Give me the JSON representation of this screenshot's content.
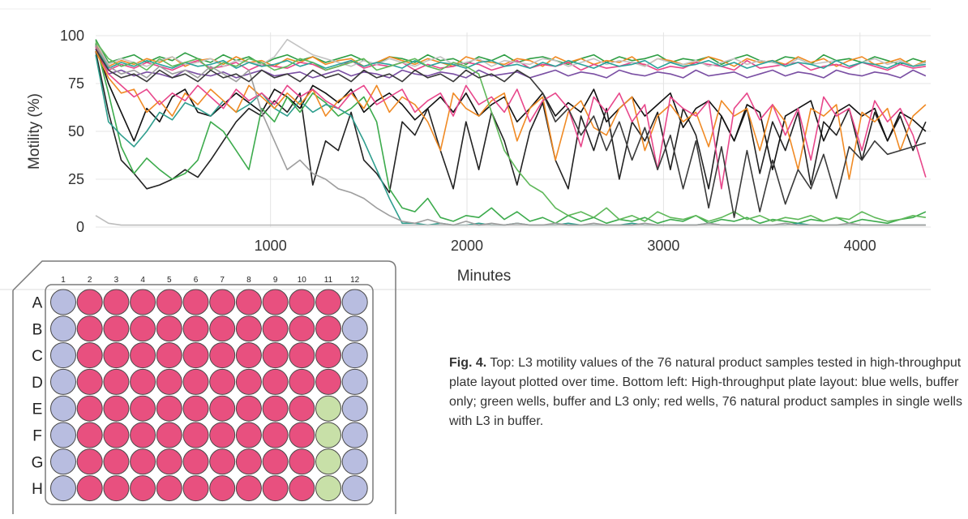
{
  "chart_data": {
    "type": "line",
    "title": "",
    "xlabel": "Minutes",
    "ylabel": "Motility (%)",
    "xlim": [
      110,
      4360
    ],
    "ylim": [
      0,
      100
    ],
    "x_ticks": [
      1000,
      2000,
      3000,
      4000
    ],
    "y_ticks": [
      0,
      25,
      50,
      75,
      100
    ],
    "grid": true,
    "legend": "none",
    "x": [
      110,
      175,
      240,
      305,
      370,
      435,
      500,
      565,
      630,
      695,
      760,
      825,
      890,
      955,
      1020,
      1085,
      1150,
      1215,
      1280,
      1345,
      1410,
      1475,
      1540,
      1605,
      1670,
      1735,
      1800,
      1865,
      1930,
      1995,
      2060,
      2125,
      2190,
      2255,
      2320,
      2385,
      2450,
      2515,
      2580,
      2645,
      2710,
      2775,
      2840,
      2905,
      2970,
      3035,
      3100,
      3165,
      3230,
      3295,
      3360,
      3425,
      3490,
      3555,
      3620,
      3685,
      3750,
      3815,
      3880,
      3945,
      4010,
      4075,
      4140,
      4205,
      4270,
      4335
    ],
    "series": [
      {
        "color": "#2e9e44",
        "values": [
          98,
          86,
          88,
          90,
          86,
          89,
          87,
          91,
          88,
          86,
          90,
          87,
          89,
          85,
          88,
          90,
          87,
          89,
          86,
          88,
          90,
          87,
          85,
          89,
          88,
          86,
          90,
          87,
          88,
          85,
          89,
          87,
          90,
          86,
          88,
          89,
          87,
          85,
          88,
          90,
          86,
          89,
          87,
          88,
          90,
          86,
          88,
          87,
          89,
          85,
          88,
          90,
          87,
          86,
          89,
          88,
          85,
          90,
          87,
          88,
          86,
          89,
          87,
          85,
          88,
          86
        ]
      },
      {
        "color": "#f08a24",
        "values": [
          96,
          84,
          87,
          85,
          88,
          86,
          89,
          84,
          87,
          88,
          85,
          89,
          86,
          87,
          84,
          88,
          86,
          89,
          85,
          87,
          88,
          84,
          86,
          89,
          87,
          85,
          88,
          86,
          84,
          89,
          87,
          86,
          85,
          88,
          87,
          84,
          89,
          86,
          88,
          85,
          87,
          86,
          89,
          84,
          88,
          87,
          85,
          86,
          89,
          87,
          84,
          88,
          86,
          87,
          85,
          89,
          86,
          88,
          84,
          87,
          89,
          85,
          86,
          88,
          84,
          87
        ]
      },
      {
        "color": "#e8478b",
        "values": [
          95,
          82,
          85,
          83,
          86,
          84,
          82,
          85,
          87,
          83,
          84,
          86,
          82,
          85,
          84,
          83,
          86,
          85,
          82,
          84,
          87,
          83,
          85,
          84,
          86,
          82,
          85,
          83,
          84,
          86,
          85,
          82,
          84,
          87,
          83,
          85,
          84,
          86,
          82,
          85,
          83,
          84,
          86,
          85,
          82,
          84,
          83,
          86,
          85,
          84,
          82,
          87,
          83,
          84,
          85,
          86,
          82,
          84,
          85,
          83,
          86,
          84,
          82,
          85,
          83,
          84
        ]
      },
      {
        "color": "#7a4fa3",
        "values": [
          93,
          80,
          82,
          79,
          81,
          80,
          78,
          82,
          80,
          79,
          81,
          78,
          80,
          82,
          79,
          80,
          81,
          78,
          80,
          82,
          79,
          81,
          80,
          78,
          82,
          80,
          79,
          81,
          80,
          78,
          82,
          79,
          80,
          81,
          78,
          80,
          82,
          79,
          81,
          80,
          78,
          82,
          80,
          79,
          81,
          80,
          78,
          82,
          79,
          80,
          81,
          78,
          80,
          82,
          79,
          81,
          80,
          78,
          82,
          80,
          79,
          81,
          80,
          78,
          82,
          79
        ]
      },
      {
        "color": "#c3c3c3",
        "values": [
          97,
          85,
          88,
          86,
          84,
          87,
          89,
          85,
          86,
          88,
          84,
          87,
          86,
          85,
          89,
          98,
          94,
          90,
          88,
          86,
          84,
          87,
          85,
          88,
          86,
          84,
          87,
          89,
          85,
          86,
          88,
          84,
          87,
          86,
          85,
          88,
          87,
          84,
          86,
          88,
          85,
          87,
          86,
          84,
          88,
          86,
          85,
          87,
          84,
          86,
          88,
          85,
          87,
          86,
          84,
          88,
          85,
          86,
          87,
          84,
          86,
          88,
          85,
          87,
          84,
          86
        ]
      },
      {
        "color": "#2aa39a",
        "values": [
          94,
          83,
          86,
          84,
          87,
          85,
          83,
          86,
          84,
          85,
          87,
          83,
          86,
          84,
          85,
          87,
          84,
          86,
          83,
          85,
          87,
          84,
          86,
          85,
          83,
          87,
          84,
          86,
          85,
          83,
          86,
          87,
          84,
          85,
          83,
          86,
          84,
          87,
          85,
          83,
          86,
          84,
          85,
          87,
          83,
          86,
          84,
          85,
          87,
          84,
          86,
          83,
          85,
          87,
          84,
          86,
          85,
          83,
          87,
          84,
          86,
          85,
          83,
          86,
          84,
          85
        ]
      },
      {
        "color": "#222222",
        "values": [
          92,
          60,
          35,
          28,
          20,
          22,
          25,
          30,
          26,
          35,
          45,
          55,
          62,
          58,
          66,
          60,
          70,
          22,
          45,
          40,
          60,
          35,
          28,
          18,
          55,
          48,
          62,
          40,
          20,
          55,
          30,
          60,
          45,
          22,
          50,
          65,
          35,
          20,
          58,
          40,
          62,
          25,
          55,
          45,
          60,
          30,
          62,
          48,
          20,
          58,
          45,
          62,
          28,
          55,
          40,
          60,
          22,
          55,
          48,
          62,
          35,
          60,
          45,
          58,
          40,
          55
        ]
      },
      {
        "color": "#111111",
        "values": [
          95,
          75,
          60,
          45,
          62,
          55,
          68,
          72,
          60,
          58,
          64,
          70,
          65,
          60,
          72,
          68,
          62,
          74,
          70,
          65,
          72,
          60,
          66,
          70,
          64,
          56,
          62,
          68,
          60,
          70,
          58,
          64,
          68,
          55,
          62,
          70,
          58,
          65,
          60,
          72,
          55,
          62,
          68,
          58,
          64,
          70,
          52,
          62,
          66,
          58,
          45,
          64,
          60,
          30,
          58,
          62,
          66,
          45,
          60,
          64,
          58,
          62,
          45,
          60,
          56,
          50
        ]
      },
      {
        "color": "#3dab4d",
        "values": [
          96,
          70,
          42,
          28,
          36,
          30,
          25,
          28,
          35,
          55,
          50,
          40,
          30,
          62,
          55,
          68,
          60,
          70,
          65,
          58,
          62,
          68,
          55,
          20,
          10,
          8,
          15,
          5,
          3,
          6,
          5,
          10,
          4,
          8,
          3,
          5,
          2,
          6,
          3,
          5,
          2,
          4,
          3,
          5,
          2,
          4,
          3,
          6,
          2,
          4,
          3,
          5,
          2,
          4,
          3,
          2,
          4,
          3,
          5,
          2,
          4,
          3,
          2,
          4,
          5,
          8
        ]
      },
      {
        "color": "#2f9e8e",
        "values": [
          90,
          55,
          48,
          42,
          50,
          60,
          56,
          65,
          62,
          58,
          66,
          60,
          64,
          70,
          62,
          58,
          66,
          60,
          64,
          62,
          58,
          45,
          30,
          15,
          2,
          2,
          1,
          2,
          1,
          1,
          2,
          1,
          1,
          2,
          1,
          1,
          1,
          2,
          1,
          1,
          1,
          1,
          2,
          1,
          1,
          1,
          1,
          1,
          2,
          1,
          1,
          1,
          1,
          1,
          1,
          2,
          1,
          1,
          1,
          1,
          1,
          1,
          1,
          1,
          1,
          1
        ]
      },
      {
        "color": "#bdbdbd",
        "values": [
          6,
          2,
          1,
          1,
          1,
          1,
          1,
          1,
          1,
          1,
          1,
          1,
          1,
          1,
          1,
          1,
          1,
          1,
          1,
          1,
          1,
          1,
          1,
          1,
          1,
          1,
          1,
          1,
          1,
          1,
          1,
          1,
          1,
          1,
          1,
          1,
          1,
          1,
          1,
          1,
          1,
          1,
          1,
          1,
          1,
          1,
          1,
          1,
          1,
          1,
          1,
          1,
          1,
          1,
          1,
          1,
          1,
          1,
          1,
          1,
          1,
          1,
          1,
          1,
          1,
          1
        ]
      },
      {
        "color": "#f08a24",
        "values": [
          92,
          78,
          70,
          72,
          60,
          66,
          58,
          70,
          64,
          72,
          66,
          60,
          74,
          68,
          62,
          70,
          64,
          72,
          58,
          66,
          70,
          62,
          74,
          60,
          68,
          64,
          55,
          40,
          70,
          62,
          58,
          66,
          70,
          45,
          62,
          68,
          35,
          60,
          66,
          52,
          48,
          62,
          68,
          40,
          58,
          64,
          55,
          60,
          42,
          66,
          58,
          62,
          40,
          64,
          55,
          30,
          62,
          58,
          64,
          25,
          60,
          55,
          62,
          40,
          58,
          64
        ]
      },
      {
        "color": "#e8478b",
        "values": [
          94,
          80,
          74,
          68,
          72,
          64,
          70,
          66,
          74,
          68,
          62,
          72,
          66,
          70,
          64,
          74,
          68,
          72,
          66,
          62,
          70,
          74,
          64,
          68,
          72,
          60,
          66,
          70,
          58,
          74,
          64,
          68,
          60,
          72,
          55,
          66,
          70,
          62,
          42,
          68,
          60,
          70,
          55,
          64,
          30,
          68,
          62,
          58,
          66,
          20,
          62,
          70,
          56,
          64,
          48,
          62,
          35,
          68,
          58,
          62,
          40,
          66,
          55,
          62,
          48,
          26
        ]
      },
      {
        "color": "#5fb85a",
        "values": [
          97,
          88,
          84,
          86,
          82,
          88,
          84,
          86,
          88,
          82,
          86,
          84,
          88,
          86,
          82,
          84,
          88,
          86,
          82,
          84,
          86,
          88,
          82,
          84,
          86,
          88,
          84,
          82,
          86,
          84,
          80,
          60,
          40,
          30,
          22,
          18,
          10,
          6,
          8,
          5,
          10,
          4,
          6,
          3,
          8,
          5,
          4,
          6,
          3,
          5,
          8,
          4,
          6,
          3,
          5,
          4,
          6,
          3,
          5,
          4,
          8,
          5,
          3,
          4,
          6,
          5
        ]
      },
      {
        "color": "#9e9e9e",
        "values": [
          95,
          84,
          80,
          82,
          78,
          84,
          80,
          82,
          78,
          84,
          80,
          76,
          82,
          60,
          45,
          30,
          35,
          28,
          25,
          20,
          18,
          15,
          10,
          6,
          3,
          2,
          4,
          2,
          1,
          3,
          1,
          2,
          1,
          2,
          1,
          1,
          2,
          1,
          1,
          2,
          1,
          1,
          1,
          2,
          1,
          1,
          1,
          1,
          2,
          1,
          1,
          1,
          1,
          1,
          2,
          1,
          1,
          1,
          1,
          2,
          1,
          1,
          1,
          1,
          1,
          1
        ]
      },
      {
        "color": "#3a3a3a",
        "values": [
          93,
          82,
          78,
          80,
          76,
          82,
          78,
          80,
          76,
          82,
          78,
          80,
          76,
          82,
          78,
          80,
          76,
          82,
          78,
          80,
          76,
          82,
          78,
          80,
          76,
          82,
          78,
          80,
          76,
          82,
          78,
          80,
          76,
          82,
          78,
          70,
          55,
          62,
          48,
          58,
          40,
          55,
          35,
          52,
          30,
          48,
          20,
          45,
          10,
          42,
          5,
          40,
          8,
          35,
          12,
          30,
          20,
          38,
          15,
          42,
          35,
          45,
          38,
          40,
          42,
          44
        ]
      }
    ]
  },
  "plate": {
    "col_labels": [
      "1",
      "2",
      "3",
      "4",
      "5",
      "6",
      "7",
      "8",
      "9",
      "10",
      "11",
      "12"
    ],
    "row_labels": [
      "A",
      "B",
      "C",
      "D",
      "E",
      "F",
      "G",
      "H"
    ],
    "colors": {
      "buffer": "#b8bde0",
      "l3": "#c8e0a8",
      "sample": "#e8507f",
      "plate_line": "#7a7a7a"
    },
    "rows": [
      [
        "buffer",
        "sample",
        "sample",
        "sample",
        "sample",
        "sample",
        "sample",
        "sample",
        "sample",
        "sample",
        "sample",
        "buffer"
      ],
      [
        "buffer",
        "sample",
        "sample",
        "sample",
        "sample",
        "sample",
        "sample",
        "sample",
        "sample",
        "sample",
        "sample",
        "buffer"
      ],
      [
        "buffer",
        "sample",
        "sample",
        "sample",
        "sample",
        "sample",
        "sample",
        "sample",
        "sample",
        "sample",
        "sample",
        "buffer"
      ],
      [
        "buffer",
        "sample",
        "sample",
        "sample",
        "sample",
        "sample",
        "sample",
        "sample",
        "sample",
        "sample",
        "sample",
        "buffer"
      ],
      [
        "buffer",
        "sample",
        "sample",
        "sample",
        "sample",
        "sample",
        "sample",
        "sample",
        "sample",
        "sample",
        "l3",
        "buffer"
      ],
      [
        "buffer",
        "sample",
        "sample",
        "sample",
        "sample",
        "sample",
        "sample",
        "sample",
        "sample",
        "sample",
        "l3",
        "buffer"
      ],
      [
        "buffer",
        "sample",
        "sample",
        "sample",
        "sample",
        "sample",
        "sample",
        "sample",
        "sample",
        "sample",
        "l3",
        "buffer"
      ],
      [
        "buffer",
        "sample",
        "sample",
        "sample",
        "sample",
        "sample",
        "sample",
        "sample",
        "sample",
        "sample",
        "l3",
        "buffer"
      ]
    ]
  },
  "caption": {
    "label": "Fig. 4.",
    "text": " Top: L3 motility values of the 76 natural product samples tested in high-throughput plate layout plotted over time. Bottom left: High-throughput plate layout: blue wells, buffer only; green wells, buffer and L3 only; red wells, 76 natural product samples in single wells with L3 in buffer."
  }
}
